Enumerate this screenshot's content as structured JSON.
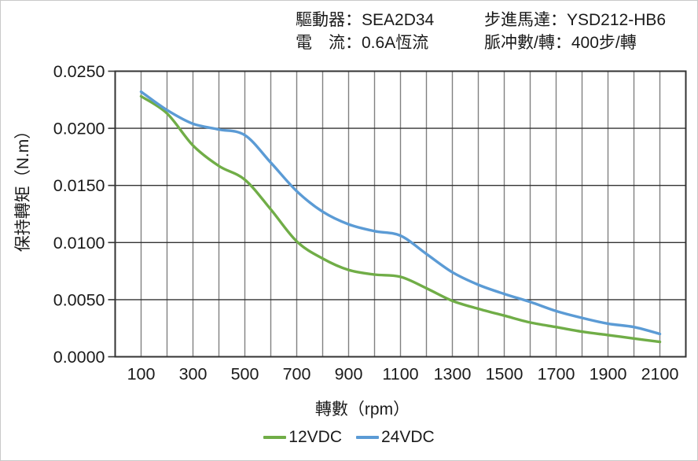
{
  "header": {
    "left": [
      {
        "label": "驅動器：",
        "value": "SEA2D34"
      },
      {
        "label": "電　流：",
        "value": "0.6A恆流"
      }
    ],
    "right": [
      {
        "label": "步進馬達：",
        "value": "YSD212-HB6"
      },
      {
        "label": "脈冲數/轉：",
        "value": "400步/轉"
      }
    ]
  },
  "chart_data": {
    "type": "line",
    "title": "",
    "xlabel": "轉數（rpm）",
    "ylabel": "保持轉矩（N.m）",
    "x": [
      100,
      200,
      300,
      400,
      500,
      600,
      700,
      800,
      900,
      1000,
      1100,
      1200,
      1300,
      1400,
      1500,
      1600,
      1700,
      1800,
      1900,
      2000,
      2100
    ],
    "series": [
      {
        "name": "12VDC",
        "color": "#70AD47",
        "values": [
          0.0228,
          0.0213,
          0.0185,
          0.0167,
          0.0155,
          0.0129,
          0.0101,
          0.0086,
          0.0076,
          0.0072,
          0.007,
          0.006,
          0.0049,
          0.0042,
          0.0036,
          0.003,
          0.0026,
          0.0022,
          0.0019,
          0.0016,
          0.0013
        ]
      },
      {
        "name": "24VDC",
        "color": "#5B9BD5",
        "values": [
          0.0232,
          0.0216,
          0.0204,
          0.0199,
          0.0194,
          0.017,
          0.0145,
          0.0127,
          0.0116,
          0.011,
          0.0106,
          0.009,
          0.0074,
          0.0063,
          0.0055,
          0.0048,
          0.004,
          0.0034,
          0.0029,
          0.0026,
          0.002
        ]
      }
    ],
    "xlim": [
      0,
      2200
    ],
    "ylim": [
      0,
      0.025
    ],
    "x_tick_values": [
      100,
      300,
      500,
      700,
      900,
      1100,
      1300,
      1500,
      1700,
      1900,
      2100
    ],
    "x_tick_labels": [
      "100",
      "300",
      "500",
      "700",
      "900",
      "1100",
      "1300",
      "1500",
      "1700",
      "1900",
      "2100"
    ],
    "y_tick_values": [
      0,
      0.005,
      0.01,
      0.015,
      0.02,
      0.025
    ],
    "y_tick_labels": [
      "0.0000",
      "0.0050",
      "0.0100",
      "0.0150",
      "0.0200",
      "0.0250"
    ],
    "x_minor_grid_step": 100,
    "grid": true,
    "smooth": true,
    "legend_position": "bottom"
  },
  "style_colors": {
    "border": "#333333",
    "grid_horizontal": "#333333",
    "grid_vertical": "#808080",
    "tick_text": "#1a1a1a"
  }
}
